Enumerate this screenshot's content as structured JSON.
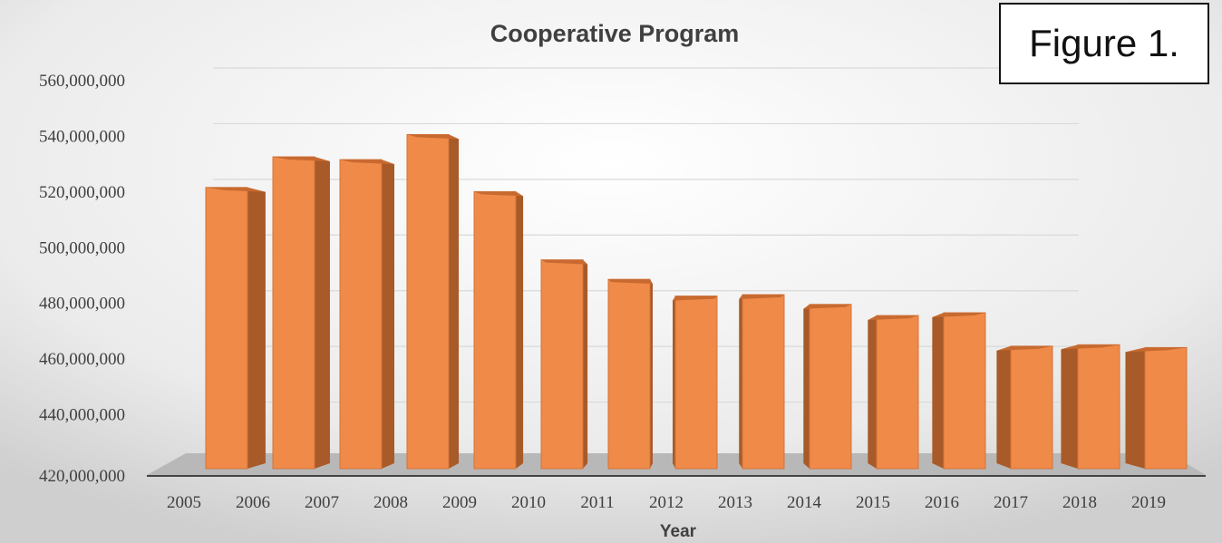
{
  "figure_label": "Figure 1.",
  "colors": {
    "bar_front": "#f08a48",
    "bar_side": "#a85a28",
    "bar_top": "#c86a30",
    "floor": "#b8b8b8",
    "text": "#404040"
  },
  "chart_data": {
    "type": "bar",
    "title": "Cooperative Program",
    "xlabel": "Year",
    "ylabel": "",
    "categories": [
      "2005",
      "2006",
      "2007",
      "2008",
      "2009",
      "2010",
      "2011",
      "2012",
      "2013",
      "2014",
      "2015",
      "2016",
      "2017",
      "2018",
      "2019"
    ],
    "values": [
      521000000,
      532000000,
      531000000,
      540000000,
      519500000,
      495000000,
      488000000,
      482000000,
      482500000,
      479000000,
      475000000,
      476000000,
      464000000,
      464500000,
      463500000
    ],
    "ylim": [
      420000000,
      560000000
    ],
    "yticks": [
      "420,000,000",
      "440,000,000",
      "460,000,000",
      "480,000,000",
      "500,000,000",
      "520,000,000",
      "540,000,000",
      "560,000,000"
    ],
    "grid": true,
    "legend": "none"
  }
}
